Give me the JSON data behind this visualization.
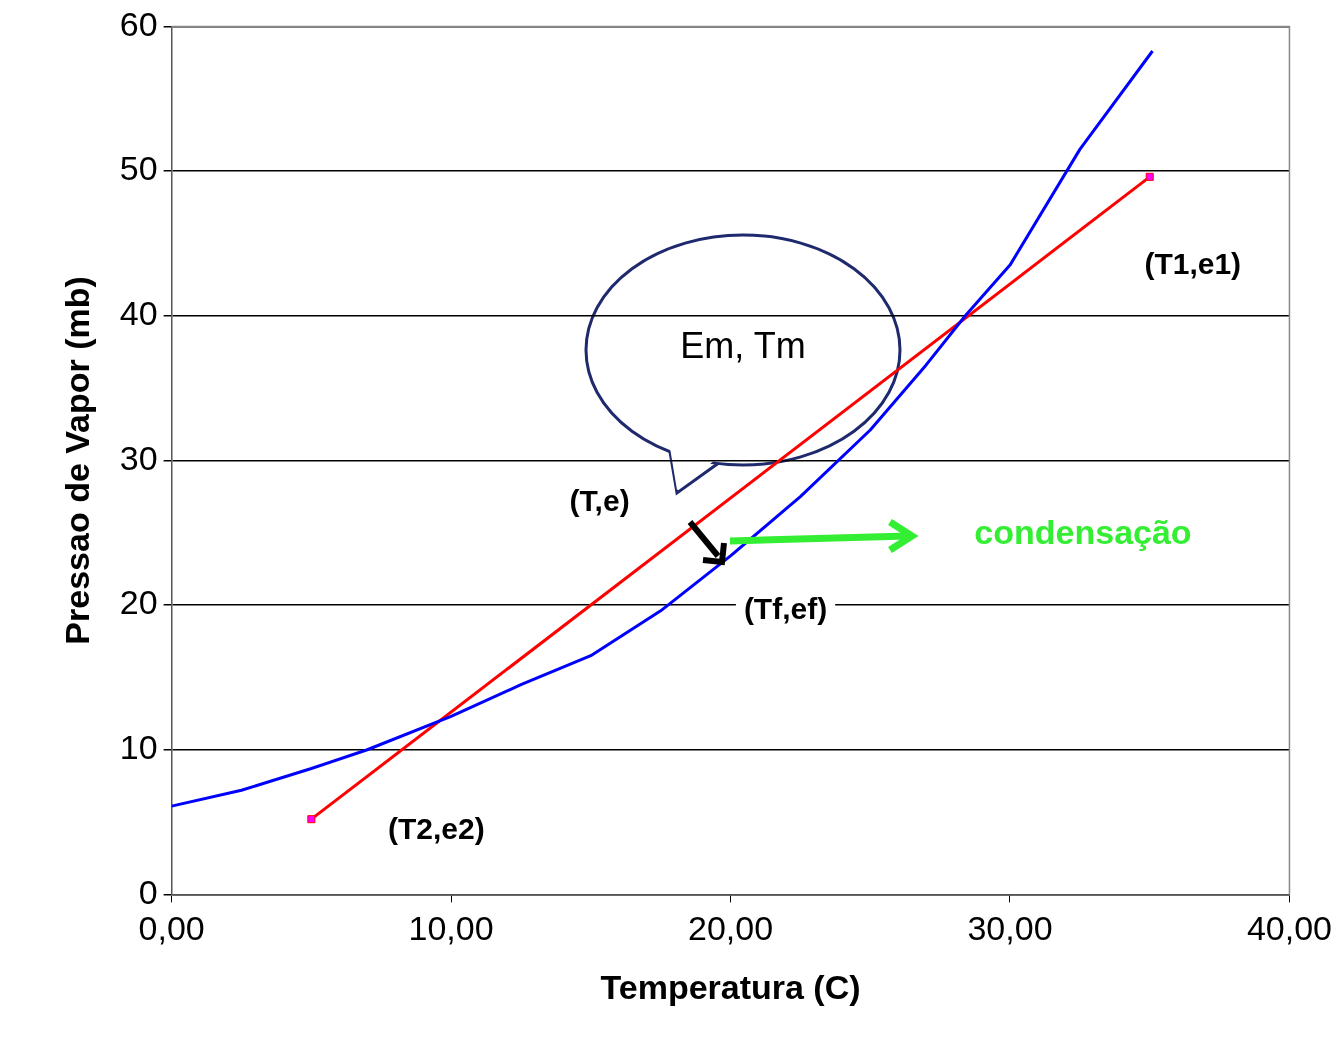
{
  "chart_data": {
    "type": "line",
    "xlabel": "Temperatura (C)",
    "ylabel": "Pressao de Vapor (mb)",
    "xlim": [
      0,
      40
    ],
    "xticks": [
      {
        "value": 0,
        "label": "0,00"
      },
      {
        "value": 10,
        "label": "10,00"
      },
      {
        "value": 20,
        "label": "20,00"
      },
      {
        "value": 30,
        "label": "30,00"
      },
      {
        "value": 40,
        "label": "40,00"
      }
    ],
    "ylim": [
      0,
      60
    ],
    "yticks": [
      0,
      10,
      20,
      30,
      40,
      50,
      60
    ],
    "grid": "y",
    "legend": false,
    "series": [
      {
        "color": "#0000ff",
        "marker": "none",
        "x": [
          0,
          2.5,
          5,
          7,
          10,
          12.5,
          15,
          17.5,
          20,
          22.5,
          25,
          27,
          28.4,
          30,
          32.5,
          35.1
        ],
        "values": [
          6.1,
          7.2,
          8.7,
          10,
          12.3,
          14.5,
          16.5,
          19.6,
          23.4,
          27.5,
          32.1,
          36.6,
          40,
          43.5,
          51.5,
          58.3
        ]
      },
      {
        "color": "#ff0000",
        "marker": "square",
        "x": [
          5,
          35
        ],
        "values": [
          5.2,
          49.6
        ]
      }
    ],
    "annotations": [
      {
        "text": "(T1,e1)",
        "x": 35,
        "y": 49.6
      },
      {
        "text": "(T2,e2)",
        "x": 5,
        "y": 5.2
      },
      {
        "text": "(T,e)",
        "x": 18.5,
        "y": 25.2
      },
      {
        "text": "(Tf,ef)",
        "x": 20,
        "y": 23.4
      },
      "Em, Tm",
      "condensação"
    ]
  }
}
